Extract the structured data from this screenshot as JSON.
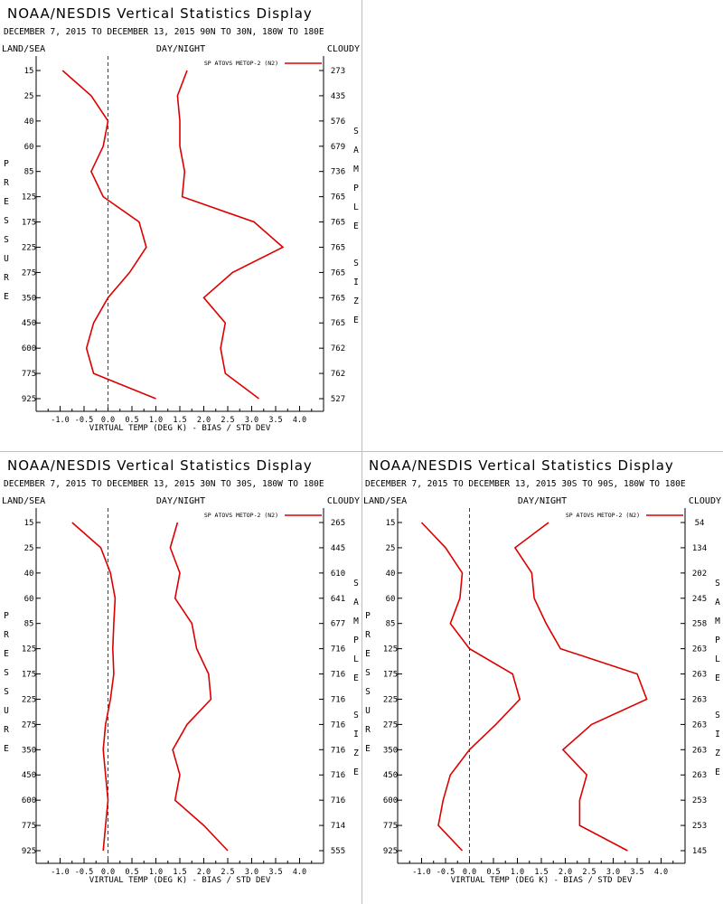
{
  "colors": {
    "series": "#dd0000",
    "axis": "#000000",
    "zero_line": "#3a3a6a",
    "divider": "#bdbdbd"
  },
  "chart_data": [
    {
      "type": "line",
      "title": "NOAA/NESDIS Vertical Statistics Display",
      "subtitle": "DECEMBER 7, 2015 TO DECEMBER 13, 2015 90N TO 30N, 180W TO 180E",
      "header_left": "LAND/SEA",
      "header_center": "DAY/NIGHT",
      "header_right": "CLOUDY",
      "xlabel": "VIRTUAL TEMP (DEG K) - BIAS / STD DEV",
      "ylabel": "PRESSURE",
      "y2label": "SAMPLE SIZE",
      "xlim": [
        -1.5,
        4.5
      ],
      "xticks": [
        "-1.0",
        "-0.5",
        "0.0",
        "0.5",
        "1.0",
        "1.5",
        "2.0",
        "2.5",
        "3.0",
        "3.5",
        "4.0"
      ],
      "pressure_levels": [
        "15",
        "25",
        "40",
        "60",
        "85",
        "125",
        "175",
        "225",
        "275",
        "350",
        "450",
        "600",
        "775",
        "925"
      ],
      "sample_sizes": [
        "273",
        "435",
        "576",
        "679",
        "736",
        "765",
        "765",
        "765",
        "765",
        "765",
        "765",
        "762",
        "762",
        "527"
      ],
      "legend": "SP ATOVS METOP-2 (N2)",
      "series": [
        {
          "name": "bias",
          "values": [
            -0.95,
            -0.35,
            0.0,
            -0.1,
            -0.35,
            -0.1,
            0.65,
            0.8,
            0.45,
            0.0,
            -0.3,
            -0.45,
            -0.3,
            1.0
          ]
        },
        {
          "name": "std_dev",
          "values": [
            1.65,
            1.45,
            1.5,
            1.5,
            1.6,
            1.55,
            3.05,
            3.65,
            2.6,
            2.0,
            2.45,
            2.35,
            2.45,
            3.15
          ]
        }
      ]
    },
    {
      "type": "line",
      "title": "NOAA/NESDIS Vertical Statistics Display",
      "subtitle": "DECEMBER 7, 2015 TO DECEMBER 13, 2015 30N TO 30S, 180W TO 180E",
      "header_left": "LAND/SEA",
      "header_center": "DAY/NIGHT",
      "header_right": "CLOUDY",
      "xlabel": "VIRTUAL TEMP (DEG K) - BIAS / STD DEV",
      "ylabel": "PRESSURE",
      "y2label": "SAMPLE SIZE",
      "xlim": [
        -1.5,
        4.5
      ],
      "xticks": [
        "-1.0",
        "-0.5",
        "0.0",
        "0.5",
        "1.0",
        "1.5",
        "2.0",
        "2.5",
        "3.0",
        "3.5",
        "4.0"
      ],
      "pressure_levels": [
        "15",
        "25",
        "40",
        "60",
        "85",
        "125",
        "175",
        "225",
        "275",
        "350",
        "450",
        "600",
        "775",
        "925"
      ],
      "sample_sizes": [
        "265",
        "445",
        "610",
        "641",
        "677",
        "716",
        "716",
        "716",
        "716",
        "716",
        "716",
        "716",
        "714",
        "555"
      ],
      "legend": "SP ATOVS METOP-2 (N2)",
      "series": [
        {
          "name": "bias",
          "values": [
            -0.75,
            -0.15,
            0.05,
            0.15,
            0.12,
            0.1,
            0.12,
            0.05,
            -0.05,
            -0.1,
            -0.05,
            0.0,
            -0.05,
            -0.1
          ]
        },
        {
          "name": "std_dev",
          "values": [
            1.45,
            1.3,
            1.5,
            1.4,
            1.75,
            1.85,
            2.1,
            2.15,
            1.65,
            1.35,
            1.5,
            1.4,
            2.0,
            2.5
          ]
        }
      ]
    },
    {
      "type": "line",
      "title": "NOAA/NESDIS Vertical Statistics Display",
      "subtitle": "DECEMBER 7, 2015 TO DECEMBER 13, 2015 30S TO 90S, 180W TO 180E",
      "header_left": "LAND/SEA",
      "header_center": "DAY/NIGHT",
      "header_right": "CLOUDY",
      "xlabel": "VIRTUAL TEMP (DEG K) - BIAS / STD DEV",
      "ylabel": "PRESSURE",
      "y2label": "SAMPLE SIZE",
      "xlim": [
        -1.5,
        4.5
      ],
      "xticks": [
        "-1.0",
        "-0.5",
        "0.0",
        "0.5",
        "1.0",
        "1.5",
        "2.0",
        "2.5",
        "3.0",
        "3.5",
        "4.0"
      ],
      "pressure_levels": [
        "15",
        "25",
        "40",
        "60",
        "85",
        "125",
        "175",
        "225",
        "275",
        "350",
        "450",
        "600",
        "775",
        "925"
      ],
      "sample_sizes": [
        "54",
        "134",
        "202",
        "245",
        "258",
        "263",
        "263",
        "263",
        "263",
        "263",
        "263",
        "253",
        "253",
        "145"
      ],
      "legend": "SP ATOVS METOP-2 (N2)",
      "series": [
        {
          "name": "bias",
          "values": [
            -1.0,
            -0.5,
            -0.15,
            -0.2,
            -0.4,
            0.0,
            0.9,
            1.05,
            0.55,
            0.0,
            -0.4,
            -0.55,
            -0.65,
            -0.15
          ]
        },
        {
          "name": "std_dev",
          "values": [
            1.65,
            0.95,
            1.3,
            1.35,
            1.6,
            1.9,
            3.5,
            3.7,
            2.55,
            1.95,
            2.45,
            2.3,
            2.3,
            3.3
          ]
        }
      ]
    }
  ]
}
